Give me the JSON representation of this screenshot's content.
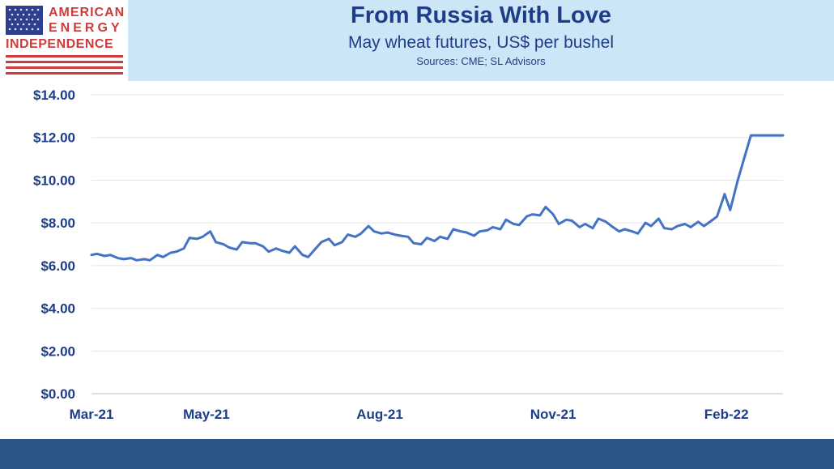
{
  "logo": {
    "line1": "AMERICAN",
    "line2": "ENERGY",
    "line3": "INDEPENDENCE",
    "colors": {
      "red": "#d03a3a",
      "blue": "#2e3f8f"
    }
  },
  "header": {
    "title": "From Russia With Love",
    "subtitle": "May wheat futures, US$ per bushel",
    "source": "Sources: CME; SL Advisors",
    "background": "#cde6f7",
    "text_color": "#1f3c88"
  },
  "chart_data": {
    "type": "line",
    "title": "",
    "xlabel": "",
    "ylabel": "",
    "ylim": [
      0,
      14
    ],
    "yticks": [
      0,
      2,
      4,
      6,
      8,
      10,
      12,
      14
    ],
    "ytick_labels": [
      "$0.00",
      "$2.00",
      "$4.00",
      "$6.00",
      "$8.00",
      "$10.00",
      "$12.00",
      "$14.00"
    ],
    "xtick_labels": [
      "Mar-21",
      "May-21",
      "Aug-21",
      "Nov-21",
      "Feb-22"
    ],
    "xtick_positions": [
      "2021-03-01",
      "2021-05-01",
      "2021-08-01",
      "2021-11-01",
      "2022-02-01"
    ],
    "xlim": [
      "2021-03-01",
      "2022-03-03"
    ],
    "grid": "horizontal",
    "legend": "none",
    "line_color": "#4472c4",
    "series": [
      {
        "x": [
          "2021-03-01",
          "2021-03-04",
          "2021-03-08",
          "2021-03-11",
          "2021-03-15",
          "2021-03-18",
          "2021-03-22",
          "2021-03-25",
          "2021-03-29",
          "2021-04-01",
          "2021-04-05",
          "2021-04-08",
          "2021-04-12",
          "2021-04-15",
          "2021-04-19",
          "2021-04-22",
          "2021-04-26",
          "2021-04-29",
          "2021-05-03",
          "2021-05-06",
          "2021-05-10",
          "2021-05-13",
          "2021-05-17",
          "2021-05-20",
          "2021-05-24",
          "2021-05-27",
          "2021-05-31",
          "2021-06-03",
          "2021-06-07",
          "2021-06-10",
          "2021-06-14",
          "2021-06-17",
          "2021-06-21",
          "2021-06-24",
          "2021-06-28",
          "2021-07-01",
          "2021-07-05",
          "2021-07-08",
          "2021-07-12",
          "2021-07-15",
          "2021-07-19",
          "2021-07-22",
          "2021-07-26",
          "2021-07-29",
          "2021-08-02",
          "2021-08-05",
          "2021-08-09",
          "2021-08-12",
          "2021-08-16",
          "2021-08-19",
          "2021-08-23",
          "2021-08-26",
          "2021-08-30",
          "2021-09-02",
          "2021-09-06",
          "2021-09-09",
          "2021-09-13",
          "2021-09-16",
          "2021-09-20",
          "2021-09-23",
          "2021-09-27",
          "2021-09-30",
          "2021-10-04",
          "2021-10-07",
          "2021-10-11",
          "2021-10-14",
          "2021-10-18",
          "2021-10-21",
          "2021-10-25",
          "2021-10-28",
          "2021-11-01",
          "2021-11-04",
          "2021-11-08",
          "2021-11-11",
          "2021-11-15",
          "2021-11-18",
          "2021-11-22",
          "2021-11-25",
          "2021-11-29",
          "2021-12-02",
          "2021-12-06",
          "2021-12-09",
          "2021-12-13",
          "2021-12-16",
          "2021-12-20",
          "2021-12-23",
          "2021-12-27",
          "2021-12-30",
          "2022-01-03",
          "2022-01-06",
          "2022-01-10",
          "2022-01-13",
          "2022-01-17",
          "2022-01-20",
          "2022-01-24",
          "2022-01-27",
          "2022-01-31",
          "2022-02-03",
          "2022-02-07",
          "2022-02-10",
          "2022-02-14",
          "2022-02-17",
          "2022-02-21",
          "2022-02-24",
          "2022-02-28",
          "2022-03-03"
        ],
        "values": [
          6.5,
          6.55,
          6.45,
          6.5,
          6.35,
          6.3,
          6.35,
          6.25,
          6.3,
          6.25,
          6.5,
          6.4,
          6.6,
          6.65,
          6.8,
          7.3,
          7.25,
          7.35,
          7.6,
          7.1,
          7.0,
          6.85,
          6.75,
          7.1,
          7.05,
          7.05,
          6.9,
          6.65,
          6.8,
          6.7,
          6.6,
          6.9,
          6.5,
          6.4,
          6.8,
          7.1,
          7.25,
          6.95,
          7.1,
          7.45,
          7.35,
          7.5,
          7.85,
          7.6,
          7.5,
          7.55,
          7.45,
          7.4,
          7.35,
          7.05,
          7.0,
          7.3,
          7.15,
          7.35,
          7.25,
          7.7,
          7.6,
          7.55,
          7.4,
          7.6,
          7.65,
          7.8,
          7.7,
          8.15,
          7.95,
          7.9,
          8.3,
          8.4,
          8.35,
          8.75,
          8.4,
          7.95,
          8.15,
          8.1,
          7.8,
          7.95,
          7.75,
          8.2,
          8.05,
          7.85,
          7.6,
          7.7,
          7.6,
          7.5,
          8.0,
          7.85,
          8.2,
          7.75,
          7.7,
          7.85,
          7.95,
          7.8,
          8.05,
          7.85,
          8.1,
          8.3,
          9.35,
          8.6,
          10.0,
          10.9,
          12.1,
          12.1,
          12.1,
          12.1,
          12.1,
          12.1
        ]
      }
    ]
  },
  "footer": {
    "color": "#2b5584"
  }
}
